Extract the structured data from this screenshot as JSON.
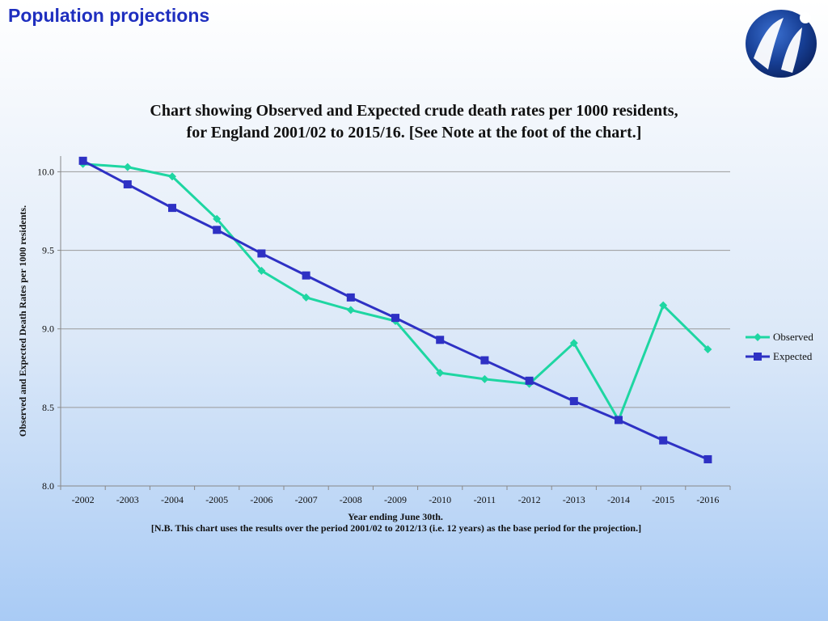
{
  "slide": {
    "title": "Population projections"
  },
  "logo": {
    "icon": "ni-logo-icon"
  },
  "colors": {
    "observed": "#1ed6a2",
    "expected": "#2e31c4",
    "title": "#1f2fbf",
    "grid": "#9a9a9a"
  },
  "chart_data": {
    "type": "line",
    "title_lines": [
      "Chart showing Observed and Expected crude death rates per 1000 residents,",
      "for England 2001/02 to 2015/16. [See Note at the foot of the chart.]"
    ],
    "xlabel": "Year ending June 30th.",
    "ylabel": "Observed and Expected Death Rates per 1000 residents.",
    "note": "[N.B. This chart uses the results over the period 2001/02 to 2012/13 (i.e. 12 years) as the base period for the projection.]",
    "categories": [
      "-2002",
      "-2003",
      "-2004",
      "-2005",
      "-2006",
      "-2007",
      "-2008",
      "-2009",
      "-2010",
      "-2011",
      "-2012",
      "-2013",
      "-2014",
      "-2015",
      "-2016"
    ],
    "ylim": [
      8.0,
      10.1
    ],
    "yticks": [
      "8.0",
      "8.5",
      "9.0",
      "9.5",
      "10.0"
    ],
    "grid": true,
    "legend_position": "right",
    "series": [
      {
        "name": "Observed",
        "marker": "diamond",
        "color": "#1ed6a2",
        "values": [
          10.05,
          10.03,
          9.97,
          9.7,
          9.37,
          9.2,
          9.12,
          9.05,
          8.72,
          8.68,
          8.65,
          8.91,
          8.42,
          9.15,
          8.87
        ]
      },
      {
        "name": "Expected",
        "marker": "square",
        "color": "#2e31c4",
        "values": [
          10.07,
          9.92,
          9.77,
          9.63,
          9.48,
          9.34,
          9.2,
          9.07,
          8.93,
          8.8,
          8.67,
          8.54,
          8.42,
          8.29,
          8.17
        ]
      }
    ]
  }
}
